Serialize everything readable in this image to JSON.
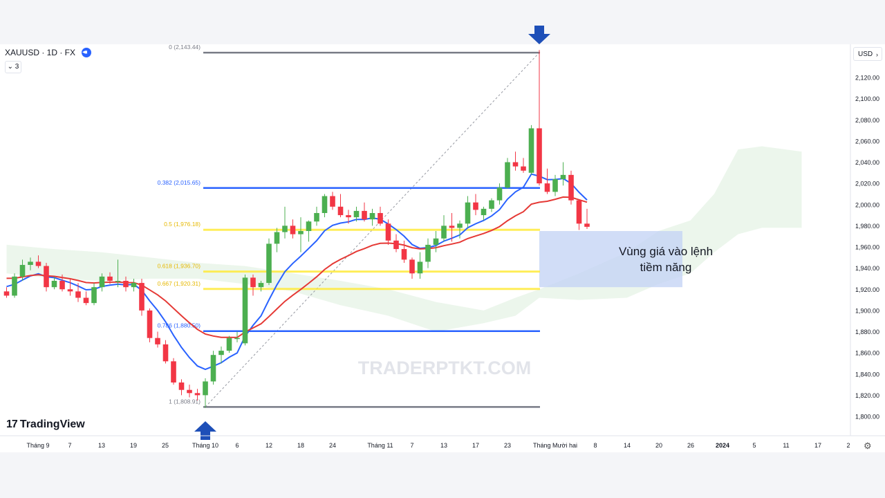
{
  "header": {
    "symbol": "XAUUSD · 1D · FX",
    "indicator_count": "3",
    "currency": "USD"
  },
  "logo": {
    "mark": "17",
    "text": "TradingView"
  },
  "watermark": "TRADERPTKT.COM",
  "zone_label": {
    "line1": "Vùng giá vào lệnh",
    "line2": "tiềm năng"
  },
  "colors": {
    "up": "#4caf50",
    "down": "#f23645",
    "ema_fast": "#2962ff",
    "ema_slow": "#e53935",
    "fib_main": "#2962ff",
    "fib_yellow": "#ffeb3b",
    "fib_range": "#787b86",
    "cloud": "#c8e6c9",
    "zone": "#c5d5f5",
    "arrow": "#1e4fb8"
  },
  "chart_data": {
    "type": "candlestick",
    "symbol": "XAUUSD",
    "timeframe": "1D",
    "ylim": [
      1790,
      2150
    ],
    "y_ticks": [
      1800,
      1820,
      1840,
      1860,
      1880,
      1900,
      1920,
      1940,
      1960,
      1980,
      2000,
      2020,
      2040,
      2060,
      2080,
      2100,
      2120
    ],
    "y_tick_labels": [
      "1,800.00",
      "1,820.00",
      "1,840.00",
      "1,860.00",
      "1,880.00",
      "1,900.00",
      "1,920.00",
      "1,940.00",
      "1,960.00",
      "1,980.00",
      "2,000.00",
      "2,020.00",
      "2,040.00",
      "2,060.00",
      "2,080.00",
      "2,100.00",
      "2,120.00"
    ],
    "x_ticks": [
      {
        "label": "Tháng 9",
        "bar": 0
      },
      {
        "label": "7",
        "bar": 4
      },
      {
        "label": "13",
        "bar": 8
      },
      {
        "label": "19",
        "bar": 12
      },
      {
        "label": "25",
        "bar": 16
      },
      {
        "label": "Tháng 10",
        "bar": 20
      },
      {
        "label": "6",
        "bar": 24
      },
      {
        "label": "12",
        "bar": 28
      },
      {
        "label": "18",
        "bar": 32
      },
      {
        "label": "24",
        "bar": 36
      },
      {
        "label": "Tháng 11",
        "bar": 42
      },
      {
        "label": "7",
        "bar": 46
      },
      {
        "label": "13",
        "bar": 50
      },
      {
        "label": "17",
        "bar": 54
      },
      {
        "label": "23",
        "bar": 58
      },
      {
        "label": "Tháng Mười hai",
        "bar": 64
      },
      {
        "label": "8",
        "bar": 70
      },
      {
        "label": "14",
        "bar": 74
      },
      {
        "label": "20",
        "bar": 78
      },
      {
        "label": "26",
        "bar": 82
      },
      {
        "label": "2024",
        "bar": 86,
        "bold": true
      },
      {
        "label": "5",
        "bar": 90
      },
      {
        "label": "11",
        "bar": 94
      },
      {
        "label": "17",
        "bar": 98
      },
      {
        "label": "2",
        "bar": 102
      }
    ],
    "candles": [
      [
        1918,
        1922,
        1912,
        1914
      ],
      [
        1914,
        1935,
        1912,
        1932
      ],
      [
        1932,
        1948,
        1928,
        1943
      ],
      [
        1943,
        1950,
        1938,
        1946
      ],
      [
        1946,
        1952,
        1940,
        1942
      ],
      [
        1942,
        1945,
        1918,
        1922
      ],
      [
        1922,
        1932,
        1920,
        1928
      ],
      [
        1928,
        1934,
        1918,
        1920
      ],
      [
        1920,
        1930,
        1914,
        1918
      ],
      [
        1918,
        1926,
        1908,
        1912
      ],
      [
        1912,
        1918,
        1905,
        1907
      ],
      [
        1907,
        1926,
        1905,
        1922
      ],
      [
        1922,
        1935,
        1918,
        1932
      ],
      [
        1932,
        1936,
        1925,
        1928
      ],
      [
        1928,
        1948,
        1922,
        1928
      ],
      [
        1928,
        1932,
        1918,
        1922
      ],
      [
        1922,
        1930,
        1918,
        1926
      ],
      [
        1926,
        1930,
        1895,
        1900
      ],
      [
        1900,
        1902,
        1870,
        1874
      ],
      [
        1874,
        1880,
        1865,
        1868
      ],
      [
        1868,
        1872,
        1850,
        1852
      ],
      [
        1852,
        1855,
        1830,
        1832
      ],
      [
        1832,
        1835,
        1820,
        1825
      ],
      [
        1825,
        1830,
        1818,
        1822
      ],
      [
        1822,
        1826,
        1815,
        1820
      ],
      [
        1820,
        1836,
        1808,
        1833
      ],
      [
        1833,
        1862,
        1830,
        1858
      ],
      [
        1858,
        1866,
        1850,
        1862
      ],
      [
        1862,
        1876,
        1860,
        1874
      ],
      [
        1874,
        1880,
        1870,
        1874
      ],
      [
        1869,
        1934,
        1867,
        1931
      ],
      [
        1931,
        1934,
        1914,
        1922
      ],
      [
        1922,
        1928,
        1918,
        1926
      ],
      [
        1926,
        1968,
        1924,
        1963
      ],
      [
        1963,
        1978,
        1955,
        1974
      ],
      [
        1974,
        1998,
        1968,
        1980
      ],
      [
        1980,
        1986,
        1968,
        1972
      ],
      [
        1972,
        1988,
        1955,
        1975
      ],
      [
        1975,
        1985,
        1965,
        1984
      ],
      [
        1984,
        1998,
        1980,
        1992
      ],
      [
        1992,
        2010,
        1988,
        2008
      ],
      [
        2008,
        2012,
        1995,
        1998
      ],
      [
        1998,
        2010,
        1988,
        1990
      ],
      [
        1990,
        1995,
        1982,
        1988
      ],
      [
        1988,
        1998,
        1984,
        1994
      ],
      [
        1994,
        2002,
        1984,
        1986
      ],
      [
        1986,
        1996,
        1980,
        1992
      ],
      [
        1992,
        1998,
        1980,
        1982
      ],
      [
        1982,
        1986,
        1962,
        1966
      ],
      [
        1966,
        1972,
        1955,
        1958
      ],
      [
        1958,
        1966,
        1945,
        1948
      ],
      [
        1948,
        1950,
        1930,
        1935
      ],
      [
        1935,
        1955,
        1930,
        1946
      ],
      [
        1946,
        1968,
        1940,
        1962
      ],
      [
        1962,
        1975,
        1955,
        1968
      ],
      [
        1968,
        1990,
        1965,
        1980
      ],
      [
        1980,
        1992,
        1965,
        1978
      ],
      [
        1978,
        1985,
        1968,
        1982
      ],
      [
        1982,
        2008,
        1978,
        2002
      ],
      [
        2002,
        2010,
        1990,
        1995
      ],
      [
        1990,
        1998,
        1985,
        1996
      ],
      [
        1996,
        2006,
        1993,
        2004
      ],
      [
        2004,
        2020,
        2000,
        2016
      ],
      [
        2016,
        2044,
        2015,
        2040
      ],
      [
        2040,
        2050,
        2032,
        2036
      ],
      [
        2036,
        2044,
        2030,
        2032
      ],
      [
        2030,
        2075,
        2028,
        2072
      ],
      [
        2072,
        2146,
        2018,
        2020
      ],
      [
        2020,
        2034,
        2010,
        2012
      ],
      [
        2012,
        2028,
        2008,
        2024
      ],
      [
        2024,
        2040,
        2018,
        2028
      ],
      [
        2028,
        2032,
        2000,
        2004
      ],
      [
        2004,
        2004,
        1976,
        1982
      ],
      [
        1982,
        1996,
        1977,
        1979
      ]
    ],
    "ema_fast_label": "",
    "ema_slow_label": "",
    "fibonacci": [
      {
        "ratio": "0",
        "price": 2143.44,
        "label": "0 (2,143.44)",
        "color": "fib_range"
      },
      {
        "ratio": "0.382",
        "price": 2015.65,
        "label": "0.382 (2,015.65)",
        "color": "fib_main"
      },
      {
        "ratio": "0.5",
        "price": 1976.18,
        "label": "0.5 (1,976.18)",
        "color": "fib_yellow"
      },
      {
        "ratio": "0.618",
        "price": 1936.7,
        "label": "0.618 (1,936.70)",
        "color": "fib_yellow"
      },
      {
        "ratio": "0.667",
        "price": 1920.31,
        "label": "0.667 (1,920.31)",
        "color": "fib_yellow"
      },
      {
        "ratio": "0.786",
        "price": 1880.5,
        "label": "0.786 (1,880.50)",
        "color": "fib_main"
      },
      {
        "ratio": "1",
        "price": 1808.91,
        "label": "1 (1,808.91)",
        "color": "fib_range"
      }
    ],
    "fib_anchor_bars": [
      25,
      67
    ],
    "entry_zone": {
      "from_bar": 67,
      "to_bar": 85,
      "price_low": 1922,
      "price_high": 1975
    },
    "arrows": [
      {
        "bar": 67,
        "direction": "down"
      },
      {
        "bar": 25,
        "direction": "up"
      }
    ]
  }
}
